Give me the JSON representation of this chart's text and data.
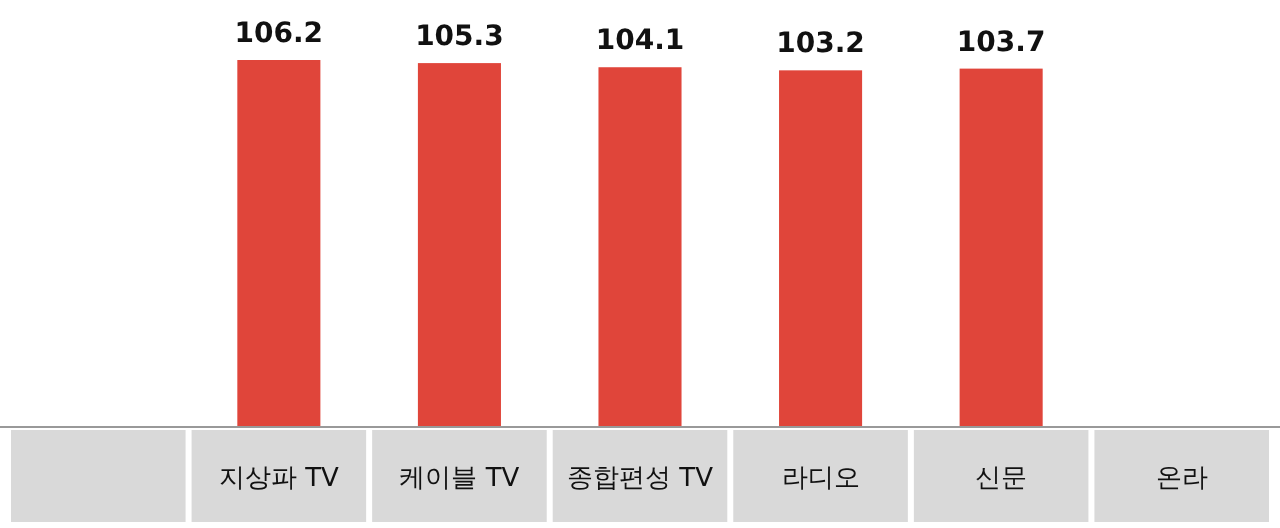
{
  "chart_data": {
    "type": "bar",
    "categories": [
      null,
      "지상파 TV",
      "케이블 TV",
      "종합편성 TV",
      "라디오",
      "신문",
      "온라"
    ],
    "values": [
      null,
      106.2,
      105.3,
      104.1,
      103.2,
      103.7,
      null
    ],
    "value_labels": [
      null,
      "106.2",
      "105.3",
      "104.1",
      "103.2",
      "103.7",
      null
    ],
    "colors": [
      "#9e2f2c",
      "#e0453a",
      "#e0453a",
      "#e0453a",
      "#e0453a",
      "#e0453a",
      "#e0453a"
    ]
  }
}
